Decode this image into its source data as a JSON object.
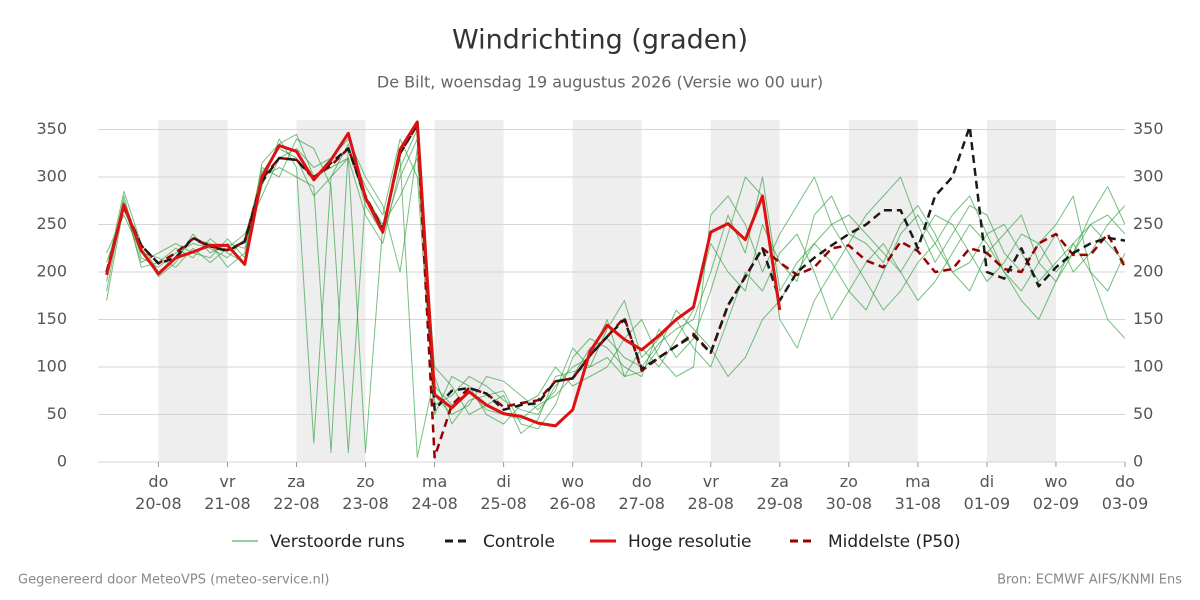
{
  "chart_data": {
    "type": "line",
    "title": "Windrichting (graden)",
    "subtitle": "De Bilt, woensdag 19 augustus 2026 (Versie wo 00 uur)",
    "footer_left": "Gegenereerd door MeteoVPS (meteo-service.nl)",
    "footer_right": "Bron: ECMWF AIFS/KNMI Ens",
    "x": [
      "2026-08-19T06:00",
      "2026-08-19T12:00",
      "2026-08-19T18:00",
      "2026-08-20T00:00",
      "2026-08-20T06:00",
      "2026-08-20T12:00",
      "2026-08-20T18:00",
      "2026-08-21T00:00",
      "2026-08-21T06:00",
      "2026-08-21T12:00",
      "2026-08-21T18:00",
      "2026-08-22T00:00",
      "2026-08-22T06:00",
      "2026-08-22T12:00",
      "2026-08-22T18:00",
      "2026-08-23T00:00",
      "2026-08-23T06:00",
      "2026-08-23T12:00",
      "2026-08-23T18:00",
      "2026-08-24T00:00",
      "2026-08-24T06:00",
      "2026-08-24T12:00",
      "2026-08-24T18:00",
      "2026-08-25T00:00",
      "2026-08-25T06:00",
      "2026-08-25T12:00",
      "2026-08-25T18:00",
      "2026-08-26T00:00",
      "2026-08-26T06:00",
      "2026-08-26T12:00",
      "2026-08-26T18:00",
      "2026-08-27T00:00",
      "2026-08-27T06:00",
      "2026-08-27T12:00",
      "2026-08-27T18:00",
      "2026-08-28T00:00",
      "2026-08-28T06:00",
      "2026-08-28T12:00",
      "2026-08-28T18:00",
      "2026-08-29T00:00",
      "2026-08-29T06:00",
      "2026-08-29T12:00",
      "2026-08-29T18:00",
      "2026-08-30T00:00",
      "2026-08-30T06:00",
      "2026-08-30T12:00",
      "2026-08-30T18:00",
      "2026-08-31T00:00",
      "2026-08-31T06:00",
      "2026-08-31T12:00",
      "2026-08-31T18:00",
      "2026-09-01T00:00",
      "2026-09-01T06:00",
      "2026-09-01T12:00",
      "2026-09-01T18:00",
      "2026-09-02T00:00",
      "2026-09-02T06:00",
      "2026-09-02T12:00",
      "2026-09-02T18:00",
      "2026-09-03T00:00"
    ],
    "xlim": [
      "2026-08-19T03:00",
      "2026-09-03T00:00"
    ],
    "xticks": [
      {
        "value": "2026-08-20T00:00",
        "label": "do 20-08"
      },
      {
        "value": "2026-08-21T00:00",
        "label": "vr 21-08"
      },
      {
        "value": "2026-08-22T00:00",
        "label": "za 22-08"
      },
      {
        "value": "2026-08-23T00:00",
        "label": "zo 23-08"
      },
      {
        "value": "2026-08-24T00:00",
        "label": "ma 24-08"
      },
      {
        "value": "2026-08-25T00:00",
        "label": "di 25-08"
      },
      {
        "value": "2026-08-26T00:00",
        "label": "wo 26-08"
      },
      {
        "value": "2026-08-27T00:00",
        "label": "do 27-08"
      },
      {
        "value": "2026-08-28T00:00",
        "label": "vr 28-08"
      },
      {
        "value": "2026-08-29T00:00",
        "label": "za 29-08"
      },
      {
        "value": "2026-08-30T00:00",
        "label": "zo 30-08"
      },
      {
        "value": "2026-08-31T00:00",
        "label": "ma 31-08"
      },
      {
        "value": "2026-09-01T00:00",
        "label": "di 01-09"
      },
      {
        "value": "2026-09-02T00:00",
        "label": "wo 02-09"
      },
      {
        "value": "2026-09-03T00:00",
        "label": "do 03-09"
      }
    ],
    "ylim": [
      0,
      360
    ],
    "yticks": [
      0,
      50,
      100,
      150,
      200,
      250,
      300,
      350
    ],
    "grid": true,
    "ensemble": {
      "name": "Verstoorde runs",
      "color": "#2e9e3e",
      "members": [
        [
          190,
          280,
          215,
          205,
          220,
          230,
          225,
          215,
          235,
          305,
          330,
          320,
          280,
          300,
          335,
          270,
          240,
          300,
          340,
          80,
          60,
          75,
          55,
          50,
          45,
          60,
          70,
          90,
          120,
          130,
          110,
          100,
          125,
          140,
          150,
          200,
          260,
          220,
          300,
          180,
          210,
          230,
          250,
          260,
          240,
          220,
          200,
          230,
          260,
          250,
          220,
          190,
          210,
          240,
          230,
          200,
          220,
          250,
          230,
          210
        ],
        [
          210,
          265,
          225,
          195,
          210,
          240,
          220,
          230,
          225,
          290,
          340,
          310,
          20,
          300,
          320,
          260,
          230,
          310,
          350,
          60,
          70,
          90,
          80,
          65,
          55,
          50,
          80,
          100,
          110,
          150,
          90,
          120,
          100,
          130,
          160,
          230,
          200,
          180,
          250,
          210,
          190,
          260,
          280,
          240,
          230,
          210,
          250,
          270,
          240,
          200,
          180,
          220,
          240,
          260,
          210,
          190,
          230,
          250,
          260,
          240
        ],
        [
          180,
          275,
          205,
          210,
          225,
          215,
          235,
          220,
          210,
          310,
          300,
          340,
          330,
          290,
          10,
          280,
          250,
          320,
          5,
          90,
          40,
          65,
          70,
          75,
          40,
          35,
          60,
          110,
          130,
          120,
          100,
          90,
          140,
          110,
          130,
          180,
          240,
          300,
          280,
          150,
          120,
          170,
          200,
          230,
          260,
          280,
          300,
          250,
          210,
          240,
          270,
          260,
          220,
          200,
          230,
          250,
          280,
          200,
          150,
          130
        ],
        [
          220,
          260,
          220,
          215,
          205,
          225,
          210,
          225,
          240,
          280,
          320,
          330,
          310,
          320,
          340,
          300,
          270,
          200,
          330,
          100,
          80,
          50,
          60,
          70,
          30,
          45,
          90,
          95,
          100,
          140,
          170,
          110,
          130,
          150,
          120,
          100,
          150,
          200,
          180,
          220,
          240,
          200,
          150,
          180,
          210,
          230,
          200,
          170,
          190,
          220,
          250,
          230,
          200,
          180,
          210,
          240,
          200,
          220,
          250,
          270
        ],
        [
          200,
          285,
          230,
          200,
          215,
          235,
          230,
          205,
          220,
          300,
          310,
          300,
          290,
          10,
          330,
          290,
          260,
          340,
          300,
          50,
          90,
          80,
          50,
          40,
          60,
          70,
          100,
          80,
          90,
          100,
          130,
          150,
          110,
          90,
          100,
          260,
          280,
          250,
          200,
          240,
          270,
          300,
          250,
          220,
          190,
          160,
          180,
          210,
          230,
          260,
          280,
          240,
          200,
          170,
          150,
          190,
          220,
          260,
          290,
          250
        ],
        [
          170,
          270,
          210,
          220,
          230,
          220,
          215,
          235,
          215,
          315,
          335,
          345,
          300,
          310,
          320,
          10,
          250,
          280,
          320,
          70,
          50,
          60,
          90,
          85,
          70,
          55,
          75,
          120,
          100,
          110,
          90,
          95,
          120,
          160,
          140,
          120,
          90,
          110,
          150,
          170,
          200,
          230,
          210,
          180,
          160,
          200,
          240,
          260,
          230,
          200,
          210,
          240,
          250,
          220,
          190,
          210,
          230,
          200,
          180,
          220
        ]
      ]
    },
    "series": [
      {
        "name": "Middelste (P50)",
        "color": "#990000",
        "style": "dashed",
        "values": [
          200,
          268,
          228,
          209,
          220,
          235,
          227,
          223,
          232,
          298,
          320,
          318,
          300,
          312,
          330,
          280,
          245,
          325,
          355,
          5,
          60,
          78,
          72,
          58,
          62,
          65,
          85,
          88,
          112,
          132,
          152,
          96,
          110,
          122,
          135,
          115,
          165,
          195,
          225,
          210,
          197,
          205,
          225,
          228,
          212,
          205,
          232,
          222,
          200,
          203,
          225,
          220,
          203,
          200,
          230,
          240,
          218,
          218,
          240,
          205
        ]
      },
      {
        "name": "Controle",
        "color": "#1a1a1a",
        "style": "dashed",
        "values": [
          200,
          270,
          228,
          209,
          215,
          236,
          227,
          222,
          232,
          295,
          320,
          318,
          298,
          315,
          330,
          278,
          245,
          325,
          355,
          55,
          75,
          78,
          72,
          55,
          60,
          62,
          85,
          88,
          112,
          132,
          150,
          98,
          110,
          122,
          133,
          115,
          165,
          195,
          225,
          170,
          200,
          215,
          228,
          240,
          250,
          265,
          265,
          225,
          280,
          300,
          353,
          200,
          193,
          225,
          185,
          205,
          220,
          230,
          236,
          233
        ]
      },
      {
        "name": "Hoge resolutie",
        "color": "#dd1111",
        "style": "solid",
        "values": [
          197,
          271,
          223,
          198,
          215,
          221,
          228,
          228,
          208,
          300,
          333,
          327,
          297,
          318,
          346,
          278,
          242,
          329,
          358,
          71,
          57,
          74,
          60,
          51,
          48,
          41,
          38,
          55,
          116,
          144,
          129,
          118,
          133,
          150,
          163,
          242,
          251,
          234,
          280,
          160,
          null,
          null,
          null,
          null,
          null,
          null,
          null,
          null,
          null,
          null,
          null,
          null,
          null,
          null,
          null,
          null,
          null,
          null,
          null,
          null
        ]
      }
    ]
  }
}
